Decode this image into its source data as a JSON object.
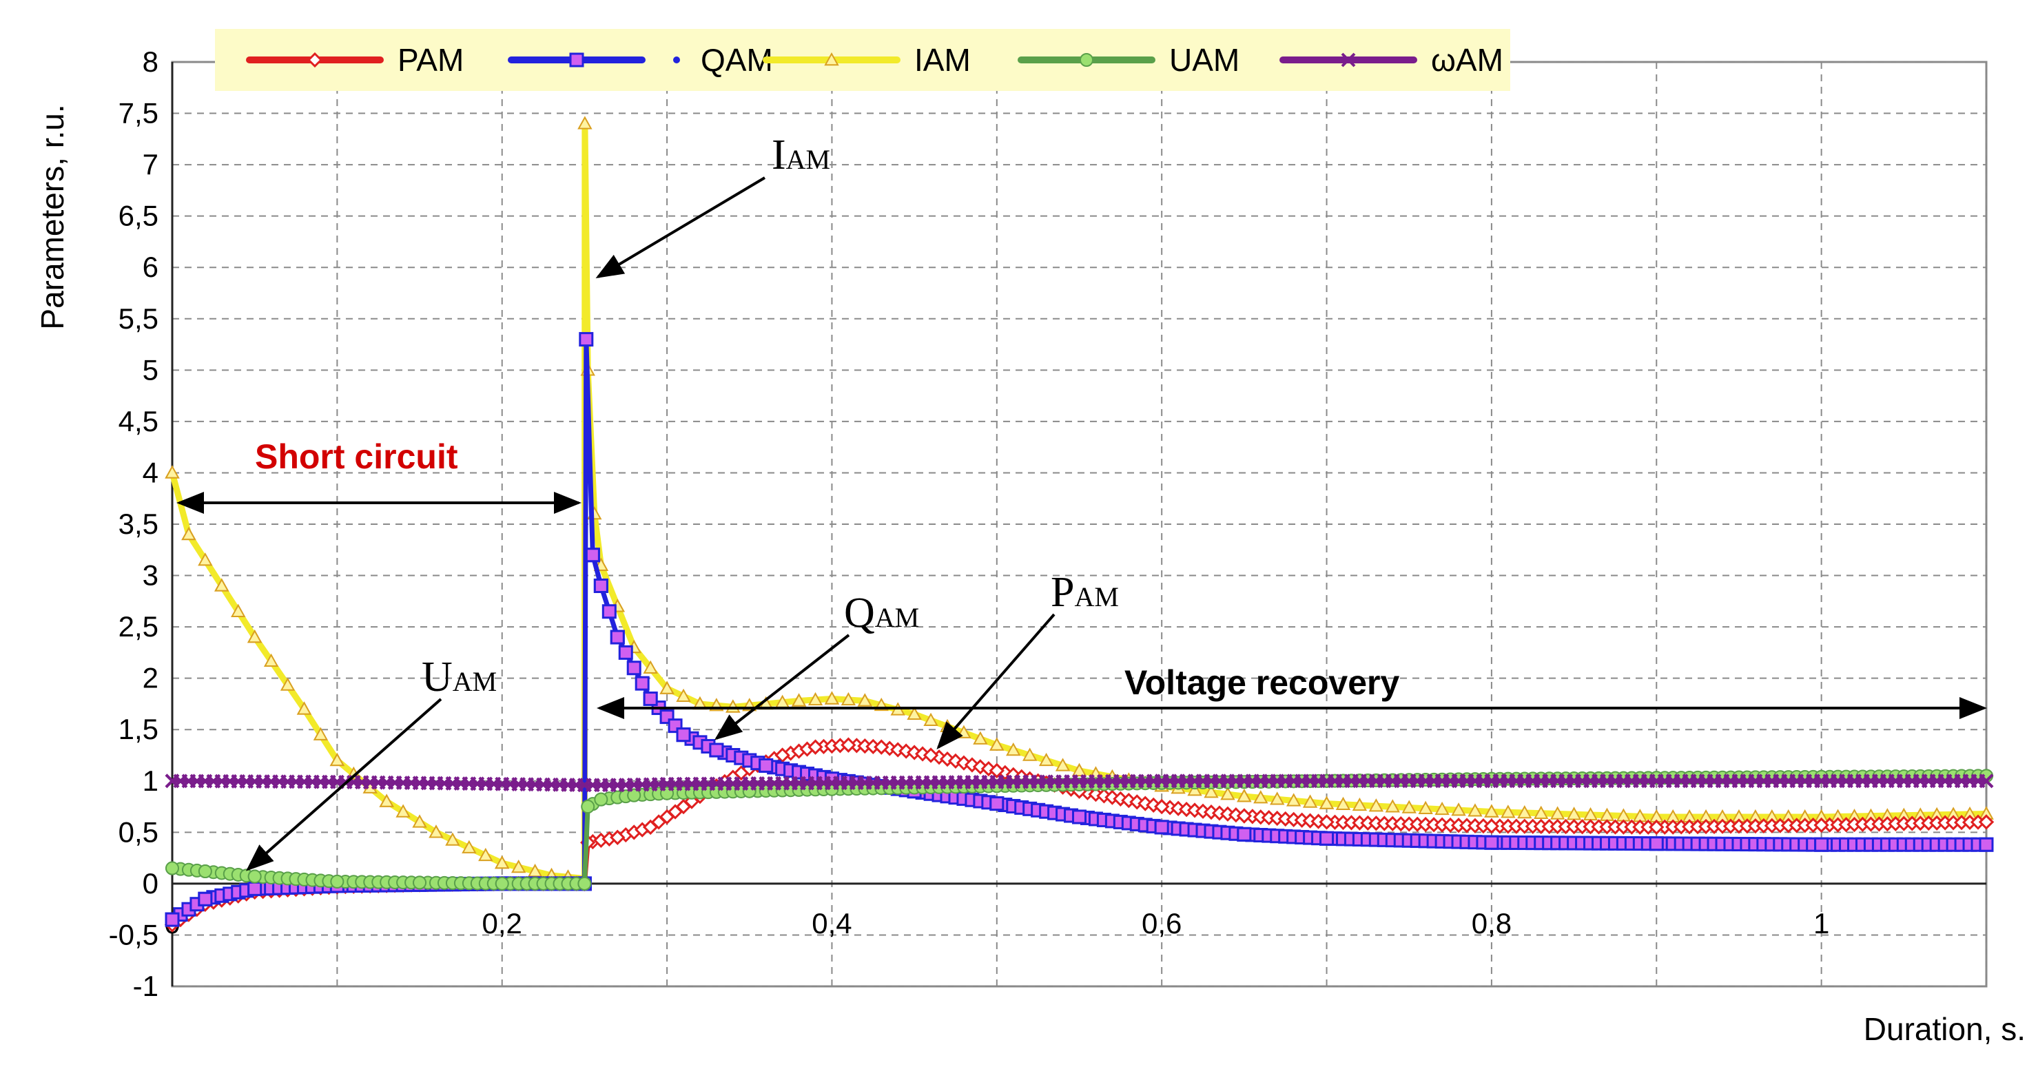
{
  "chart_data": {
    "type": "line",
    "xlabel": "Duration, s.",
    "ylabel": "Parameters, r.u.",
    "xlim": [
      0,
      1.1
    ],
    "ylim": [
      -1,
      8
    ],
    "xticks": [
      0,
      0.2,
      0.4,
      0.6,
      0.8,
      1
    ],
    "xtick_labels": [
      "0",
      "0,2",
      "0,4",
      "0,6",
      "0,8",
      "1"
    ],
    "xgrid": [
      0,
      0.1,
      0.2,
      0.3,
      0.4,
      0.5,
      0.6,
      0.7,
      0.8,
      0.9,
      1.0,
      1.1
    ],
    "yticks": [
      -1,
      -0.5,
      0,
      0.5,
      1,
      1.5,
      2,
      2.5,
      3,
      3.5,
      4,
      4.5,
      5,
      5.5,
      6,
      6.5,
      7,
      7.5,
      8
    ],
    "ytick_labels": [
      "-1",
      "-0,5",
      "0",
      "0,5",
      "1",
      "1,5",
      "2",
      "2,5",
      "3",
      "3,5",
      "4",
      "4,5",
      "5",
      "5,5",
      "6",
      "6,5",
      "7",
      "7,5",
      "8"
    ],
    "grid": true,
    "legend_position": "top",
    "series": [
      {
        "name": "PAM",
        "color": "#e02020",
        "marker": "diamond",
        "x": [
          0,
          0.02,
          0.05,
          0.1,
          0.15,
          0.2,
          0.25,
          0.252,
          0.27,
          0.29,
          0.31,
          0.33,
          0.35,
          0.37,
          0.39,
          0.41,
          0.43,
          0.46,
          0.5,
          0.55,
          0.6,
          0.65,
          0.7,
          0.8,
          0.9,
          1.0,
          1.1
        ],
        "y": [
          -0.4,
          -0.2,
          -0.08,
          -0.03,
          -0.01,
          0,
          0,
          0.4,
          0.45,
          0.55,
          0.75,
          0.95,
          1.12,
          1.25,
          1.33,
          1.35,
          1.33,
          1.25,
          1.1,
          0.9,
          0.75,
          0.66,
          0.6,
          0.56,
          0.55,
          0.57,
          0.6
        ]
      },
      {
        "name": "QAM",
        "color": "#2222dd",
        "marker": "square",
        "x": [
          0,
          0.02,
          0.05,
          0.1,
          0.15,
          0.2,
          0.25,
          0.251,
          0.255,
          0.26,
          0.27,
          0.29,
          0.31,
          0.33,
          0.36,
          0.4,
          0.45,
          0.5,
          0.55,
          0.6,
          0.65,
          0.7,
          0.8,
          0.9,
          1.0,
          1.1
        ],
        "y": [
          -0.35,
          -0.15,
          -0.05,
          -0.02,
          -0.01,
          0,
          0,
          5.3,
          3.2,
          2.9,
          2.4,
          1.8,
          1.45,
          1.3,
          1.15,
          1.02,
          0.9,
          0.78,
          0.65,
          0.55,
          0.48,
          0.44,
          0.4,
          0.39,
          0.38,
          0.38
        ]
      },
      {
        "name": "IAM",
        "color": "#f2ea2a",
        "marker": "triangle",
        "x": [
          0,
          0.01,
          0.03,
          0.05,
          0.08,
          0.1,
          0.13,
          0.16,
          0.2,
          0.23,
          0.25,
          0.2502,
          0.252,
          0.256,
          0.26,
          0.27,
          0.28,
          0.3,
          0.32,
          0.34,
          0.36,
          0.38,
          0.4,
          0.42,
          0.45,
          0.5,
          0.55,
          0.6,
          0.65,
          0.7,
          0.8,
          0.9,
          1.0,
          1.1
        ],
        "y": [
          4.0,
          3.4,
          2.9,
          2.4,
          1.7,
          1.2,
          0.8,
          0.5,
          0.2,
          0.08,
          0.05,
          7.4,
          5.0,
          3.6,
          3.1,
          2.7,
          2.3,
          1.9,
          1.75,
          1.72,
          1.75,
          1.78,
          1.8,
          1.78,
          1.65,
          1.35,
          1.1,
          0.95,
          0.85,
          0.78,
          0.7,
          0.65,
          0.65,
          0.68
        ]
      },
      {
        "name": "UAM",
        "color": "#5aa04a",
        "marker": "circle",
        "x": [
          0,
          0.02,
          0.05,
          0.1,
          0.15,
          0.2,
          0.25,
          0.252,
          0.26,
          0.28,
          0.3,
          0.35,
          0.4,
          0.5,
          0.6,
          0.7,
          0.8,
          0.9,
          1.0,
          1.1
        ],
        "y": [
          0.15,
          0.12,
          0.07,
          0.02,
          0.01,
          0,
          0,
          0.75,
          0.82,
          0.86,
          0.88,
          0.9,
          0.92,
          0.95,
          0.98,
          1.0,
          1.02,
          1.03,
          1.04,
          1.05
        ]
      },
      {
        "name": "ωAM",
        "color": "#7a1d8c",
        "marker": "x",
        "x": [
          0,
          0.1,
          0.2,
          0.25,
          0.27,
          0.3,
          0.4,
          0.5,
          0.6,
          0.8,
          1.0,
          1.1
        ],
        "y": [
          1.0,
          0.99,
          0.97,
          0.96,
          0.96,
          0.97,
          0.98,
          0.99,
          1.0,
          1.0,
          1.0,
          1.0
        ]
      }
    ],
    "annotations": {
      "iam": {
        "main": "I",
        "sub": "AM"
      },
      "qam": {
        "main": "Q",
        "sub": "AM"
      },
      "pam": {
        "main": "P",
        "sub": "AM"
      },
      "uam": {
        "main": "U",
        "sub": "AM"
      },
      "short_circuit": "Short circuit",
      "voltage_recovery": "Voltage recovery"
    }
  }
}
